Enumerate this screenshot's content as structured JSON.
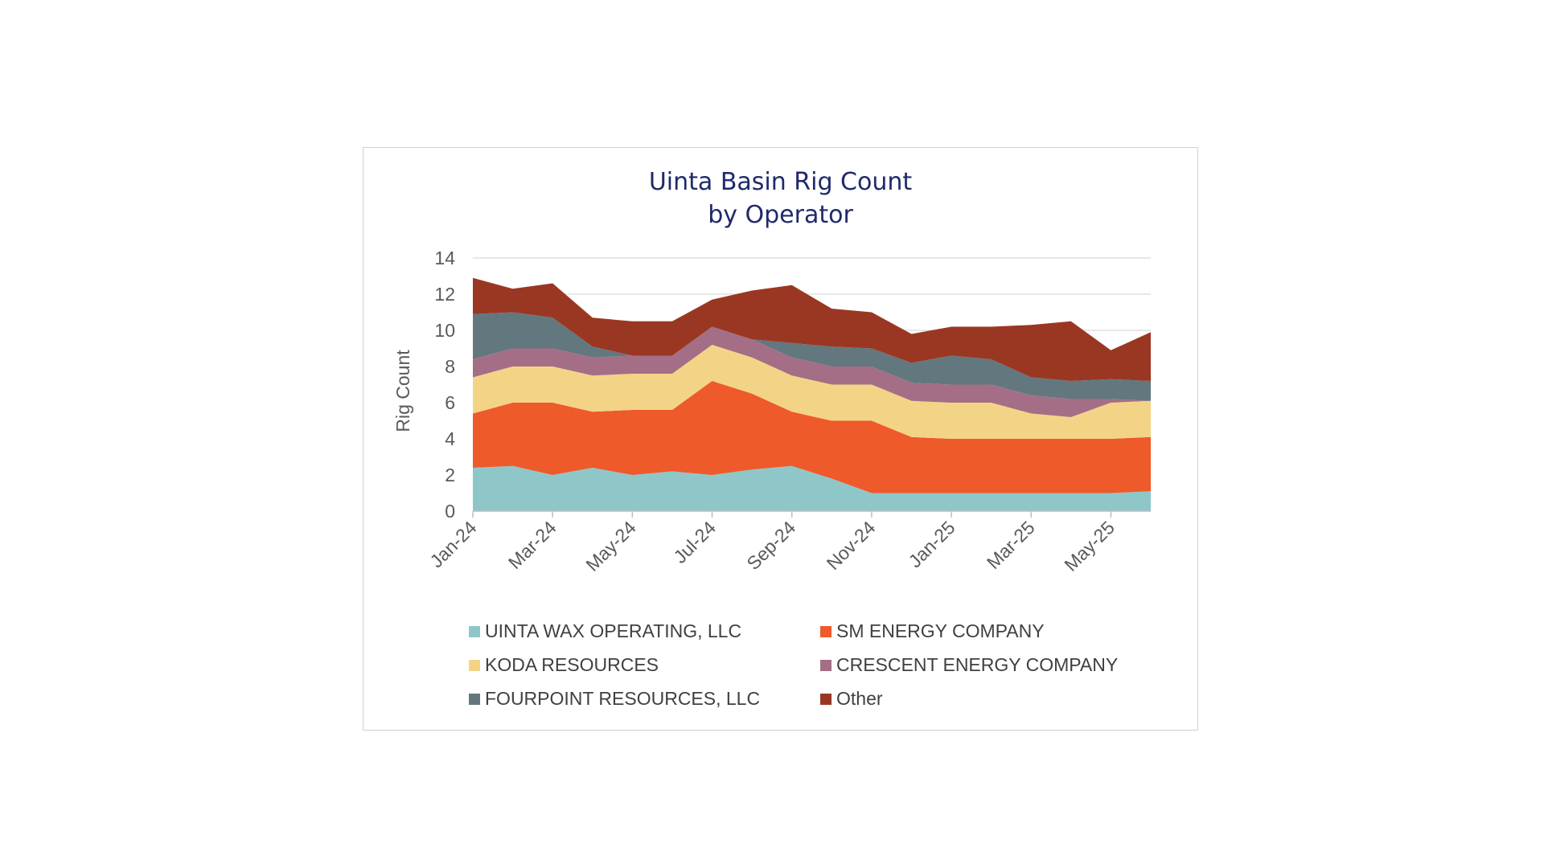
{
  "chart_data": {
    "type": "area",
    "stacked": true,
    "title_lines": [
      "Uinta Basin Rig Count",
      "by Operator"
    ],
    "ylabel": "Rig Count",
    "xlabel": "",
    "ylim": [
      0,
      14
    ],
    "yticks": [
      0,
      2,
      4,
      6,
      8,
      10,
      12,
      14
    ],
    "x": [
      "Jan-24",
      "Feb-24",
      "Mar-24",
      "Apr-24",
      "May-24",
      "Jun-24",
      "Jul-24",
      "Aug-24",
      "Sep-24",
      "Oct-24",
      "Nov-24",
      "Dec-24",
      "Jan-25",
      "Feb-25",
      "Mar-25",
      "Apr-25",
      "May-25",
      "Jun-25"
    ],
    "xtick_labels": [
      "Jan-24",
      "Mar-24",
      "May-24",
      "Jul-24",
      "Sep-24",
      "Nov-24",
      "Jan-25",
      "Mar-25",
      "May-25"
    ],
    "grid": "horizontal",
    "legend_position": "bottom",
    "series": [
      {
        "name": "UINTA WAX OPERATING, LLC",
        "color": "#8fc7c9",
        "values": [
          2.4,
          2.5,
          2.0,
          2.4,
          2.0,
          2.2,
          2.0,
          2.3,
          2.5,
          1.8,
          1.0,
          1.0,
          1.0,
          1.0,
          1.0,
          1.0,
          1.0,
          1.1
        ]
      },
      {
        "name": "SM ENERGY COMPANY",
        "color": "#ef5a2a",
        "values": [
          3.0,
          3.5,
          4.0,
          3.1,
          3.6,
          3.4,
          5.2,
          4.2,
          3.0,
          3.2,
          4.0,
          3.1,
          3.0,
          3.0,
          3.0,
          3.0,
          3.0,
          3.0
        ]
      },
      {
        "name": "KODA RESOURCES",
        "color": "#f3d487",
        "values": [
          2.0,
          2.0,
          2.0,
          2.0,
          2.0,
          2.0,
          2.0,
          2.0,
          2.0,
          2.0,
          2.0,
          2.0,
          2.0,
          2.0,
          1.4,
          1.2,
          2.0,
          2.0
        ]
      },
      {
        "name": "CRESCENT ENERGY COMPANY",
        "color": "#a46e86",
        "values": [
          1.0,
          1.0,
          1.0,
          1.0,
          1.0,
          1.0,
          1.0,
          1.0,
          1.0,
          1.0,
          1.0,
          1.0,
          1.0,
          1.0,
          1.0,
          1.0,
          0.2,
          0.0
        ]
      },
      {
        "name": "FOURPOINT RESOURCES, LLC",
        "color": "#63777f",
        "values": [
          2.5,
          2.0,
          1.7,
          0.6,
          0.0,
          0.0,
          0.0,
          0.0,
          0.8,
          1.1,
          1.0,
          1.1,
          1.6,
          1.4,
          1.0,
          1.0,
          1.1,
          1.1
        ]
      },
      {
        "name": "Other",
        "color": "#9a3722",
        "values": [
          2.0,
          1.3,
          1.9,
          1.6,
          1.9,
          1.9,
          1.5,
          2.7,
          3.2,
          2.1,
          2.0,
          1.6,
          1.6,
          1.8,
          2.9,
          3.3,
          1.6,
          2.7
        ]
      }
    ]
  }
}
